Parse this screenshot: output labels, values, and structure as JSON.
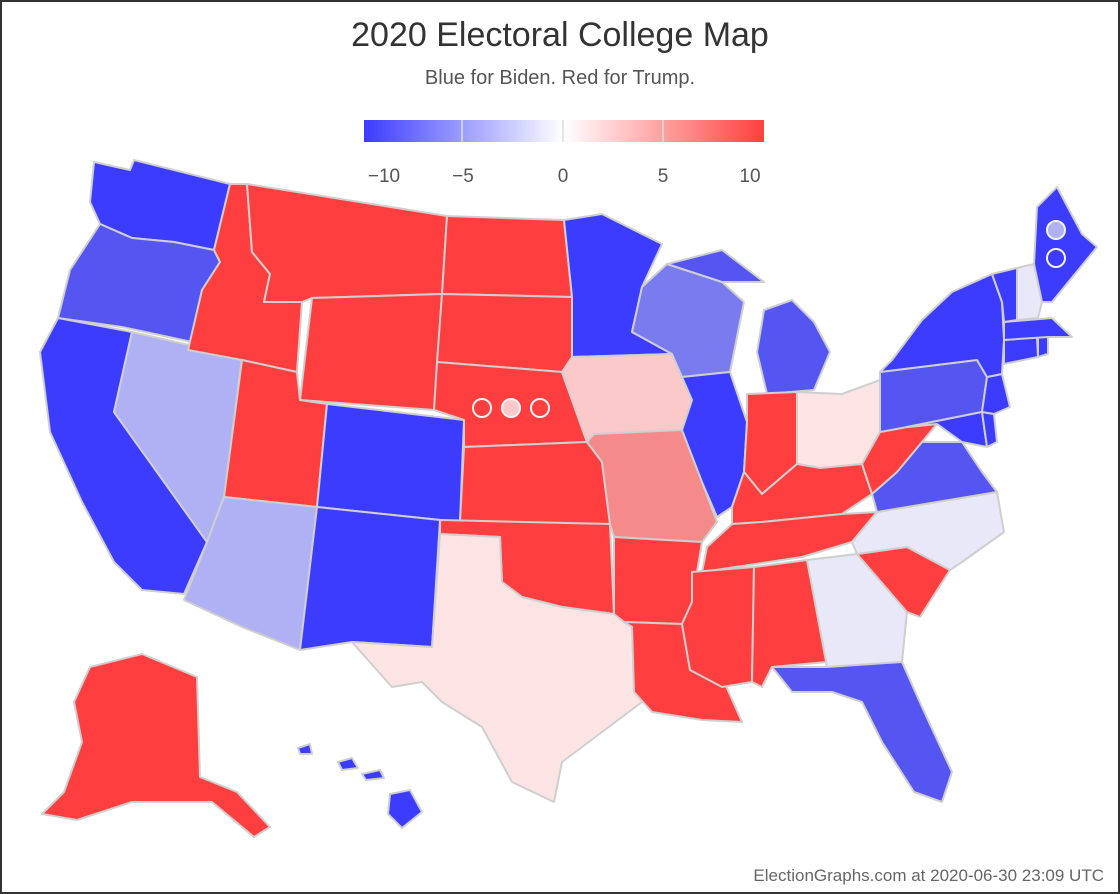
{
  "title": "2020 Electoral College Map",
  "subtitle": "Blue for Biden. Red for Trump.",
  "legend": {
    "ticks": [
      "−10",
      "−5",
      "0",
      "5",
      "10"
    ],
    "min": -10,
    "max": 10
  },
  "footer": "ElectionGraphs.com at 2020-06-30 23:09 UTC",
  "colors": {
    "strong_dem": "#3c3cff",
    "dem": "#5555f2",
    "lean_dem": "#7b7bf0",
    "tilt_dem": "#b0b0f5",
    "tossup_dem": "#e8e8f8",
    "tossup_rep": "#fde4e4",
    "tilt_rep": "#fbc9c9",
    "lean_rep": "#f58a8a",
    "strong_rep": "#ff3f3f",
    "border": "#cfcfcf"
  },
  "states": [
    {
      "id": "WA",
      "shade": "strong_dem"
    },
    {
      "id": "OR",
      "shade": "dem"
    },
    {
      "id": "CA",
      "shade": "strong_dem"
    },
    {
      "id": "NV",
      "shade": "tilt_dem"
    },
    {
      "id": "ID",
      "shade": "strong_rep"
    },
    {
      "id": "MT",
      "shade": "strong_rep"
    },
    {
      "id": "WY",
      "shade": "strong_rep"
    },
    {
      "id": "UT",
      "shade": "strong_rep"
    },
    {
      "id": "AZ",
      "shade": "tilt_dem"
    },
    {
      "id": "CO",
      "shade": "strong_dem"
    },
    {
      "id": "NM",
      "shade": "strong_dem"
    },
    {
      "id": "ND",
      "shade": "strong_rep"
    },
    {
      "id": "SD",
      "shade": "strong_rep"
    },
    {
      "id": "NE",
      "shade": "strong_rep"
    },
    {
      "id": "KS",
      "shade": "strong_rep"
    },
    {
      "id": "OK",
      "shade": "strong_rep"
    },
    {
      "id": "TX",
      "shade": "tossup_rep"
    },
    {
      "id": "MN",
      "shade": "strong_dem"
    },
    {
      "id": "IA",
      "shade": "tilt_rep"
    },
    {
      "id": "MO",
      "shade": "lean_rep"
    },
    {
      "id": "AR",
      "shade": "strong_rep"
    },
    {
      "id": "LA",
      "shade": "strong_rep"
    },
    {
      "id": "WI",
      "shade": "lean_dem"
    },
    {
      "id": "IL",
      "shade": "strong_dem"
    },
    {
      "id": "MI",
      "shade": "dem"
    },
    {
      "id": "IN",
      "shade": "strong_rep"
    },
    {
      "id": "OH",
      "shade": "tossup_rep"
    },
    {
      "id": "KY",
      "shade": "strong_rep"
    },
    {
      "id": "TN",
      "shade": "strong_rep"
    },
    {
      "id": "MS",
      "shade": "strong_rep"
    },
    {
      "id": "AL",
      "shade": "strong_rep"
    },
    {
      "id": "GA",
      "shade": "tossup_dem"
    },
    {
      "id": "FL",
      "shade": "dem"
    },
    {
      "id": "SC",
      "shade": "strong_rep"
    },
    {
      "id": "NC",
      "shade": "tossup_dem"
    },
    {
      "id": "VA",
      "shade": "dem"
    },
    {
      "id": "WV",
      "shade": "strong_rep"
    },
    {
      "id": "PA",
      "shade": "dem"
    },
    {
      "id": "NY",
      "shade": "strong_dem"
    },
    {
      "id": "VT",
      "shade": "strong_dem"
    },
    {
      "id": "NH",
      "shade": "tossup_dem"
    },
    {
      "id": "ME",
      "shade": "strong_dem"
    },
    {
      "id": "MA",
      "shade": "strong_dem"
    },
    {
      "id": "CT",
      "shade": "strong_dem"
    },
    {
      "id": "RI",
      "shade": "strong_dem"
    },
    {
      "id": "NJ",
      "shade": "strong_dem"
    },
    {
      "id": "DE",
      "shade": "strong_dem"
    },
    {
      "id": "MD",
      "shade": "strong_dem"
    },
    {
      "id": "AK",
      "shade": "strong_rep"
    },
    {
      "id": "HI",
      "shade": "strong_dem"
    },
    {
      "id": "NE-CD1",
      "shade": "strong_rep"
    },
    {
      "id": "NE-CD2",
      "shade": "tilt_rep"
    },
    {
      "id": "NE-CD3",
      "shade": "strong_rep"
    },
    {
      "id": "ME-CD1",
      "shade": "tilt_dem"
    },
    {
      "id": "ME-CD2",
      "shade": "strong_dem"
    }
  ]
}
